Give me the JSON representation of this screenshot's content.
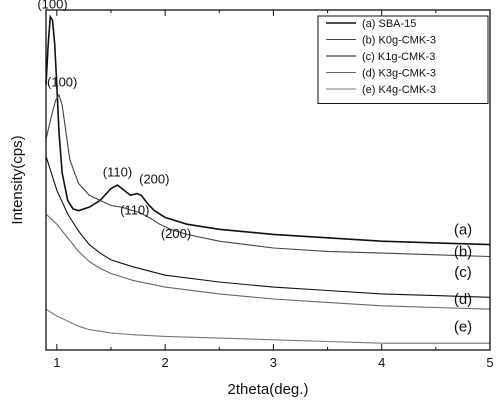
{
  "chart_data": {
    "type": "line",
    "title": "",
    "xlabel": "2theta(deg.)",
    "ylabel": "Intensity(cps)",
    "xlim": [
      0.9,
      5
    ],
    "ylim": [
      0,
      1
    ],
    "x_ticks": [
      "1",
      "2",
      "3",
      "4",
      "5"
    ],
    "y_ticks_labeled": false,
    "legend_position": "top-right",
    "legend": [
      "(a) SBA-15",
      "(b) K0g-CMK-3",
      "(c) K1g-CMK-3",
      "(d) K3g-CMK-3",
      "(e) K4g-CMK-3"
    ],
    "curve_labels": [
      "(a)",
      "(b)",
      "(c)",
      "(d)",
      "(e)"
    ],
    "annotations": [
      {
        "text": "(100)",
        "x": 0.96,
        "y": 1.005
      },
      {
        "text": "(100)",
        "x": 1.05,
        "y": 0.775
      },
      {
        "text": "(110)",
        "x": 1.56,
        "y": 0.51
      },
      {
        "text": "(200)",
        "x": 1.9,
        "y": 0.49
      },
      {
        "text": "(110)",
        "x": 1.72,
        "y": 0.398
      },
      {
        "text": "(200)",
        "x": 2.1,
        "y": 0.33
      }
    ],
    "series": [
      {
        "name": "(a) SBA-15",
        "color": "#111111",
        "x": [
          0.9,
          0.92,
          0.94,
          0.96,
          0.98,
          1.0,
          1.02,
          1.05,
          1.1,
          1.15,
          1.2,
          1.3,
          1.4,
          1.5,
          1.56,
          1.62,
          1.68,
          1.74,
          1.78,
          1.84,
          1.9,
          2.0,
          2.2,
          2.5,
          3.0,
          3.5,
          4.0,
          4.5,
          5.0
        ],
        "y": [
          0.78,
          0.9,
          0.98,
          0.97,
          0.9,
          0.78,
          0.64,
          0.52,
          0.44,
          0.415,
          0.41,
          0.42,
          0.44,
          0.475,
          0.485,
          0.47,
          0.455,
          0.46,
          0.455,
          0.43,
          0.41,
          0.39,
          0.37,
          0.355,
          0.34,
          0.33,
          0.32,
          0.315,
          0.31
        ]
      },
      {
        "name": "(b) K0g-CMK-3",
        "color": "#444444",
        "x": [
          0.9,
          0.93,
          0.96,
          0.99,
          1.02,
          1.05,
          1.08,
          1.12,
          1.2,
          1.3,
          1.4,
          1.5,
          1.6,
          1.7,
          1.76,
          1.85,
          1.95,
          2.05,
          2.2,
          2.5,
          3.0,
          3.5,
          4.0,
          4.5,
          5.0
        ],
        "y": [
          0.62,
          0.66,
          0.7,
          0.735,
          0.75,
          0.72,
          0.65,
          0.56,
          0.49,
          0.455,
          0.44,
          0.425,
          0.42,
          0.41,
          0.405,
          0.39,
          0.37,
          0.355,
          0.34,
          0.32,
          0.3,
          0.29,
          0.285,
          0.28,
          0.275
        ]
      },
      {
        "name": "(c) K1g-CMK-3",
        "color": "#111111",
        "x": [
          0.9,
          0.95,
          1.0,
          1.1,
          1.2,
          1.3,
          1.4,
          1.5,
          1.7,
          2.0,
          2.5,
          3.0,
          3.5,
          4.0,
          4.5,
          5.0
        ],
        "y": [
          0.57,
          0.52,
          0.47,
          0.4,
          0.35,
          0.31,
          0.285,
          0.265,
          0.245,
          0.22,
          0.2,
          0.185,
          0.175,
          0.165,
          0.16,
          0.155
        ]
      },
      {
        "name": "(d) K3g-CMK-3",
        "color": "#666666",
        "x": [
          0.9,
          0.95,
          1.0,
          1.05,
          1.1,
          1.2,
          1.3,
          1.4,
          1.5,
          1.7,
          2.0,
          2.5,
          3.0,
          3.5,
          4.0,
          4.5,
          5.0
        ],
        "y": [
          0.4,
          0.385,
          0.37,
          0.35,
          0.33,
          0.29,
          0.26,
          0.24,
          0.225,
          0.205,
          0.185,
          0.165,
          0.15,
          0.14,
          0.13,
          0.125,
          0.12
        ]
      },
      {
        "name": "(e) K4g-CMK-3",
        "color": "#777777",
        "x": [
          0.9,
          1.0,
          1.1,
          1.2,
          1.3,
          1.4,
          1.5,
          1.7,
          2.0,
          2.5,
          3.0,
          3.5,
          4.0,
          4.5,
          5.0
        ],
        "y": [
          0.12,
          0.1,
          0.085,
          0.07,
          0.06,
          0.055,
          0.05,
          0.045,
          0.04,
          0.035,
          0.03,
          0.025,
          0.02,
          0.02,
          0.02
        ]
      }
    ]
  }
}
